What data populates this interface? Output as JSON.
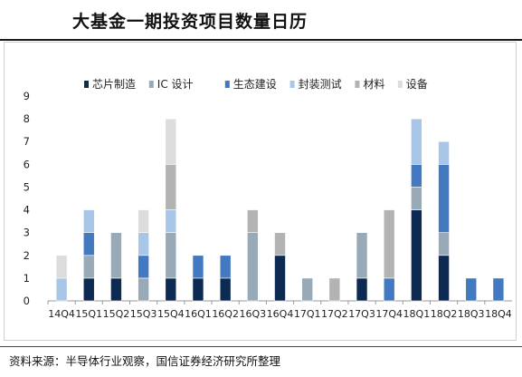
{
  "title": "大基金一期投资项目数量日历",
  "source": "资料来源：半导体行业观察，国信证券经济研究所整理",
  "chart_data": {
    "type": "bar",
    "stacked": true,
    "categories": [
      "14Q4",
      "15Q1",
      "15Q2",
      "15Q3",
      "15Q4",
      "16Q1",
      "16Q2",
      "16Q3",
      "16Q4",
      "17Q1",
      "17Q2",
      "17Q3",
      "17Q4",
      "18Q1",
      "18Q2",
      "18Q3",
      "18Q4"
    ],
    "ylim": [
      0,
      9
    ],
    "yticks": [
      0,
      1,
      2,
      3,
      4,
      5,
      6,
      7,
      8,
      9
    ],
    "grid": false,
    "legend_position": "top",
    "series": [
      {
        "name": "芯片制造",
        "color": "#0d2a52",
        "values": [
          0,
          1,
          1,
          0,
          1,
          1,
          1,
          0,
          2,
          0,
          0,
          1,
          0,
          4,
          2,
          0,
          0
        ]
      },
      {
        "name": "IC 设计",
        "color": "#98a9b8",
        "values": [
          0,
          1,
          2,
          1,
          2,
          0,
          0,
          3,
          0,
          1,
          0,
          2,
          0,
          1,
          1,
          0,
          0
        ]
      },
      {
        "name": "生态建设",
        "color": "#4279c0",
        "values": [
          0,
          1,
          0,
          1,
          0,
          1,
          1,
          0,
          0,
          0,
          0,
          0,
          1,
          1,
          3,
          1,
          1
        ]
      },
      {
        "name": "封装测试",
        "color": "#a8c6e8",
        "values": [
          1,
          1,
          0,
          1,
          1,
          0,
          0,
          0,
          0,
          0,
          0,
          0,
          0,
          2,
          1,
          0,
          0
        ]
      },
      {
        "name": "材料",
        "color": "#b3b3b3",
        "values": [
          0,
          0,
          0,
          0,
          2,
          0,
          0,
          1,
          1,
          0,
          1,
          0,
          3,
          0,
          0,
          0,
          0
        ]
      },
      {
        "name": "设备",
        "color": "#dcdcdc",
        "values": [
          1,
          0,
          0,
          1,
          2,
          0,
          0,
          0,
          0,
          0,
          0,
          0,
          0,
          0,
          0,
          0,
          0
        ]
      }
    ]
  }
}
